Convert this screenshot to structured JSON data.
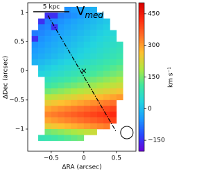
{
  "chart_data": {
    "type": "heatmap",
    "title": "V",
    "title_subscript": "med",
    "scale_bar_label": "5 kpc",
    "x_label": "ΔRA (arcsec)",
    "y_label": "ΔDec (arcsec)",
    "colorbar_label": "km s⁻¹",
    "xlim": [
      -0.86,
      0.8
    ],
    "ylim": [
      -1.38,
      1.17
    ],
    "xticks": [
      {
        "value": -0.5,
        "label": "−0.5"
      },
      0,
      0.5
    ],
    "yticks": [
      1,
      0.5,
      0,
      {
        "value": -0.5,
        "label": "−0.5"
      },
      {
        "value": -1,
        "label": "−1"
      }
    ],
    "zlim": [
      -202,
      502
    ],
    "zticks": [
      {
        "value": -150,
        "label": "−150"
      },
      0,
      150,
      300,
      450
    ],
    "colormap": [
      "#6a00d8",
      "#2848ff",
      "#1c9cff",
      "#22d4e0",
      "#40e8a0",
      "#b0e840",
      "#ffc030",
      "#ff7028",
      "#ff2a10",
      "#d80000"
    ],
    "x": [
      -0.75,
      -0.65,
      -0.55,
      -0.45,
      -0.35,
      -0.25,
      -0.15,
      -0.05,
      0.05,
      0.15,
      0.25,
      0.35,
      0.45,
      0.55,
      0.65
    ],
    "y": [
      1.05,
      0.95,
      0.85,
      0.75,
      0.65,
      0.55,
      0.45,
      0.35,
      0.25,
      0.15,
      0.05,
      -0.05,
      -0.15,
      -0.25,
      -0.35,
      -0.45,
      -0.55,
      -0.65,
      -0.75,
      -0.85,
      -0.95,
      -1.05,
      -1.15
    ],
    "z": [
      [
        null,
        null,
        null,
        null,
        null,
        -55,
        -45,
        -35,
        -25,
        -15,
        null,
        null,
        null,
        null,
        null
      ],
      [
        null,
        null,
        -150,
        -150,
        -75,
        -65,
        -55,
        -45,
        -35,
        -25,
        -15,
        null,
        null,
        null,
        null
      ],
      [
        null,
        -150,
        -75,
        -65,
        -55,
        -45,
        -35,
        -25,
        -15,
        -5,
        5,
        15,
        null,
        null,
        null
      ],
      [
        null,
        -75,
        -65,
        -150,
        -45,
        -35,
        -25,
        -15,
        -5,
        5,
        15,
        25,
        null,
        null,
        null
      ],
      [
        -75,
        -65,
        -55,
        -45,
        -35,
        -25,
        -15,
        -5,
        5,
        15,
        25,
        35,
        45,
        null,
        null
      ],
      [
        -150,
        -55,
        -45,
        -35,
        -25,
        -15,
        -5,
        5,
        15,
        25,
        35,
        45,
        55,
        null,
        null
      ],
      [
        -55,
        -45,
        -35,
        -25,
        -15,
        -5,
        5,
        15,
        25,
        35,
        45,
        55,
        65,
        75,
        null
      ],
      [
        -45,
        -35,
        -25,
        -15,
        -5,
        5,
        15,
        25,
        35,
        45,
        55,
        65,
        75,
        85,
        null
      ],
      [
        -35,
        -25,
        -15,
        -5,
        5,
        15,
        25,
        35,
        45,
        55,
        65,
        75,
        85,
        95,
        null
      ],
      [
        -15,
        -5,
        5,
        15,
        25,
        35,
        45,
        55,
        65,
        75,
        85,
        95,
        105,
        115,
        null
      ],
      [
        null,
        15,
        25,
        35,
        45,
        55,
        65,
        75,
        85,
        95,
        105,
        115,
        125,
        135,
        null
      ],
      [
        null,
        35,
        45,
        55,
        65,
        75,
        85,
        95,
        105,
        115,
        125,
        135,
        145,
        155,
        null
      ],
      [
        null,
        null,
        75,
        85,
        95,
        105,
        115,
        125,
        135,
        145,
        155,
        165,
        175,
        185,
        null
      ],
      [
        null,
        null,
        105,
        115,
        125,
        135,
        145,
        155,
        165,
        175,
        185,
        195,
        205,
        215,
        null
      ],
      [
        null,
        null,
        145,
        155,
        165,
        175,
        185,
        195,
        205,
        215,
        225,
        235,
        245,
        255,
        null
      ],
      [
        null,
        null,
        195,
        205,
        215,
        225,
        235,
        245,
        255,
        265,
        275,
        285,
        295,
        305,
        null
      ],
      [
        null,
        null,
        245,
        255,
        265,
        275,
        285,
        295,
        305,
        315,
        325,
        335,
        345,
        null,
        null
      ],
      [
        null,
        null,
        295,
        305,
        315,
        325,
        335,
        345,
        355,
        365,
        375,
        385,
        395,
        null,
        null
      ],
      [
        null,
        null,
        325,
        335,
        345,
        355,
        365,
        375,
        385,
        395,
        405,
        415,
        425,
        null,
        null
      ],
      [
        null,
        null,
        295,
        305,
        315,
        325,
        335,
        345,
        355,
        365,
        375,
        385,
        395,
        null,
        null
      ],
      [
        null,
        null,
        245,
        255,
        265,
        275,
        285,
        295,
        305,
        315,
        325,
        335,
        null,
        null,
        null
      ],
      [
        null,
        null,
        145,
        155,
        165,
        175,
        185,
        195,
        205,
        215,
        null,
        null,
        null,
        null,
        null
      ],
      [
        null,
        85,
        95,
        105,
        115,
        125,
        135,
        145,
        null,
        null,
        null,
        null,
        null,
        null,
        null
      ]
    ]
  }
}
